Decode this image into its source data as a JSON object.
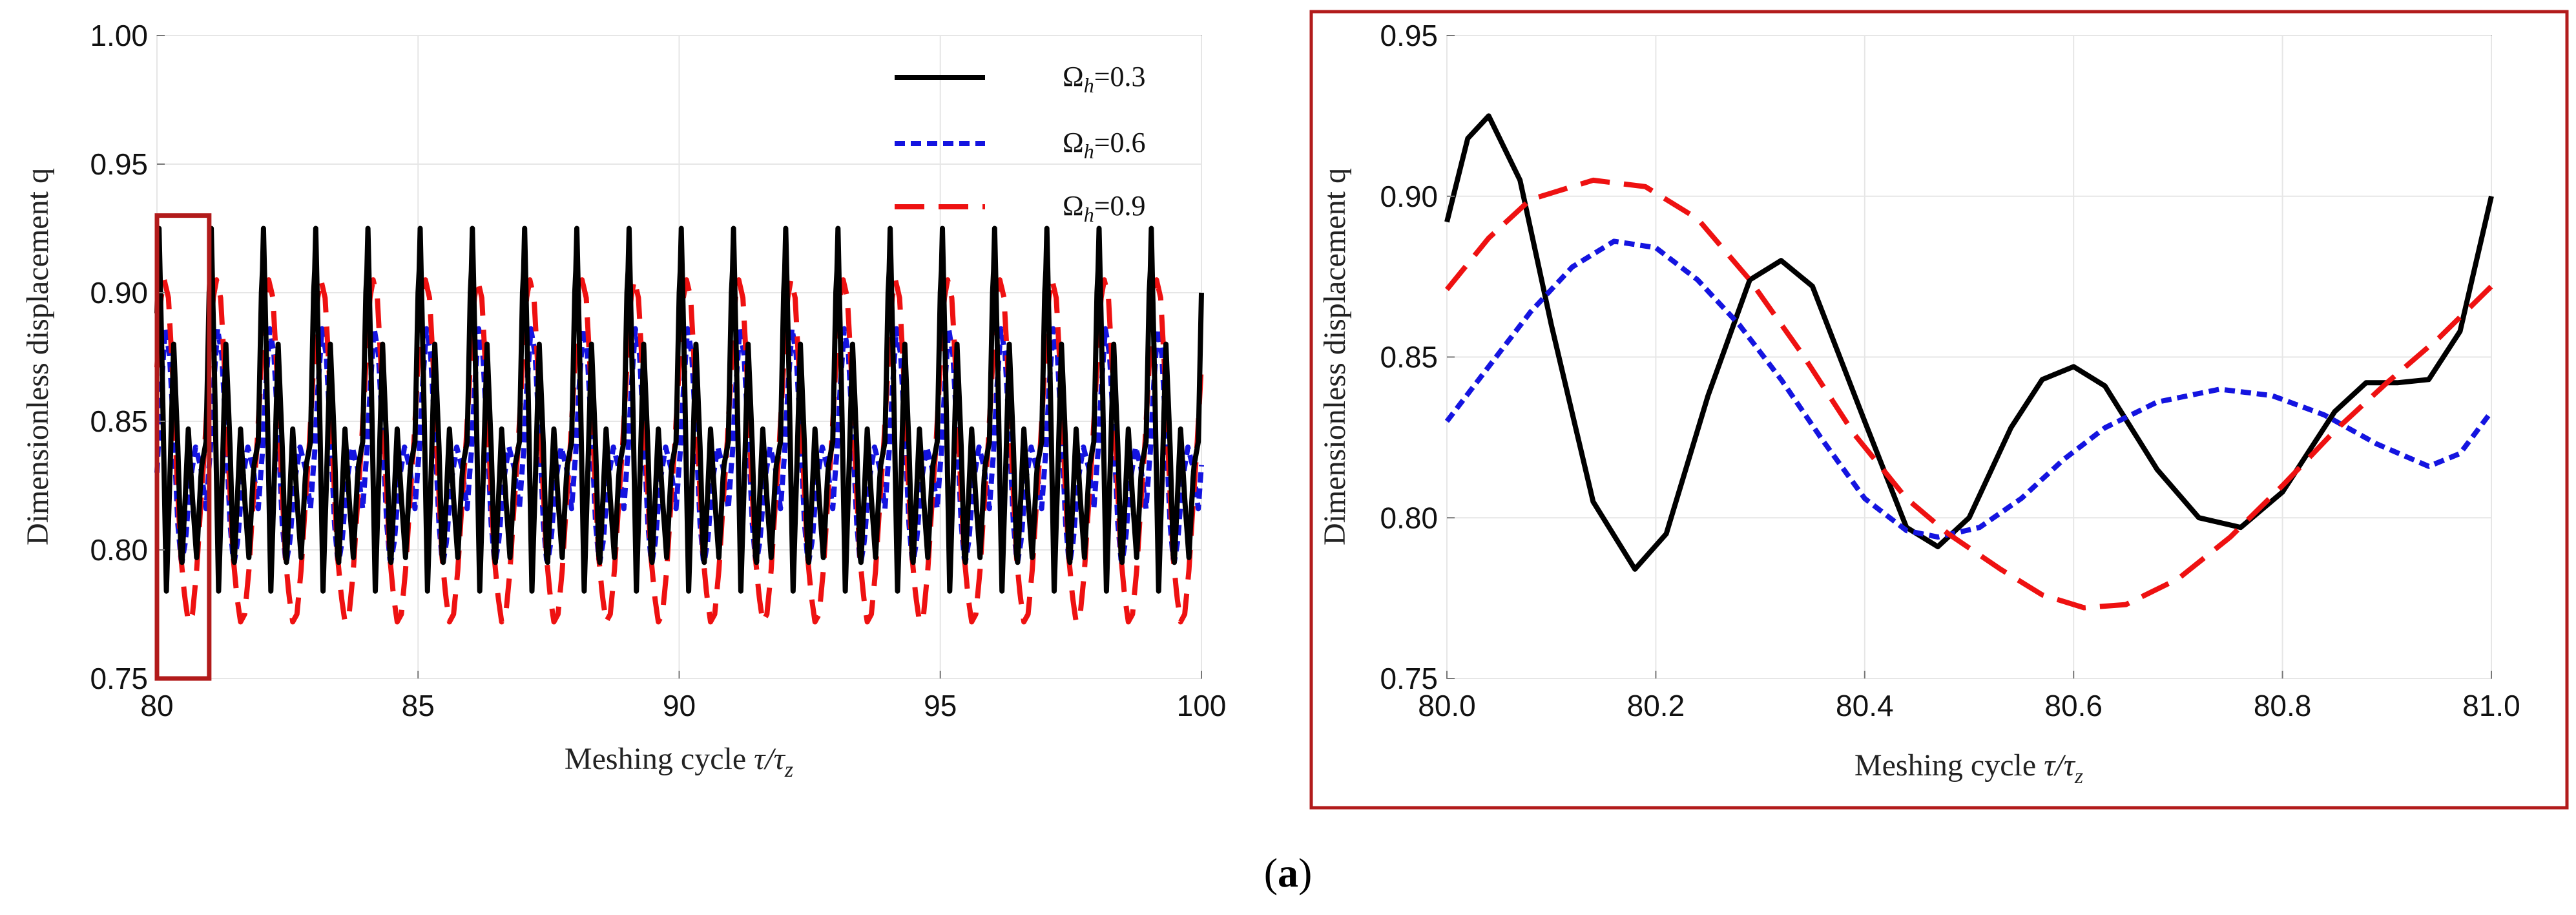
{
  "caption": {
    "open": "(",
    "letter": "a",
    "close": ")"
  },
  "chart_data": [
    {
      "type": "line",
      "title": "",
      "xlabel": "Meshing cycle τ/τz",
      "xlabel_main": "Meshing cycle ",
      "xlabel_tau": "τ/τ",
      "xlabel_sub": "z",
      "ylabel": "Dimensionless displacement q",
      "xlim": [
        80,
        100
      ],
      "ylim": [
        0.75,
        1.0
      ],
      "x_ticks": [
        80,
        85,
        90,
        95,
        100
      ],
      "y_ticks": [
        0.75,
        0.8,
        0.85,
        0.9,
        0.95,
        1.0
      ],
      "x_tick_labels": [
        "80",
        "85",
        "90",
        "95",
        "100"
      ],
      "y_tick_labels": [
        "0.75",
        "0.80",
        "0.85",
        "0.90",
        "0.95",
        "1.00"
      ],
      "legend_position": "top-right",
      "zoom_region": {
        "x": [
          80,
          81
        ],
        "y": [
          0.75,
          0.93
        ]
      },
      "series": [
        {
          "name": "Ωh=0.3",
          "omega": "Ω",
          "sub": "h",
          "value": "=0.3",
          "color": "#000000",
          "style": "solid",
          "x": [
            80.0,
            80.04,
            80.1,
            80.18,
            80.25,
            80.32,
            80.4,
            80.47,
            80.54,
            80.6,
            80.68,
            80.76,
            80.85,
            80.94,
            81.0
          ],
          "values": [
            0.892,
            0.925,
            0.87,
            0.784,
            0.83,
            0.88,
            0.84,
            0.791,
            0.82,
            0.847,
            0.82,
            0.797,
            0.832,
            0.842,
            0.9
          ]
        },
        {
          "name": "Ωh=0.6",
          "omega": "Ω",
          "sub": "h",
          "value": "=0.6",
          "color": "#1414e0",
          "style": "dotted",
          "x": [
            80.0,
            80.08,
            80.16,
            80.24,
            80.32,
            80.4,
            80.47,
            80.55,
            80.63,
            80.74,
            80.84,
            80.94,
            81.0
          ],
          "values": [
            0.83,
            0.862,
            0.886,
            0.876,
            0.846,
            0.81,
            0.794,
            0.804,
            0.826,
            0.84,
            0.832,
            0.816,
            0.833
          ]
        },
        {
          "name": "Ωh=0.9",
          "omega": "Ω",
          "sub": "h",
          "value": "=0.9",
          "color": "#ee1111",
          "style": "dashed",
          "x": [
            80.0,
            80.07,
            80.14,
            80.22,
            80.3,
            80.38,
            80.46,
            80.53,
            80.6,
            80.68,
            80.76,
            80.84,
            80.92,
            81.0
          ],
          "values": [
            0.871,
            0.897,
            0.905,
            0.898,
            0.868,
            0.83,
            0.797,
            0.782,
            0.772,
            0.775,
            0.792,
            0.818,
            0.842,
            0.872
          ]
        }
      ]
    },
    {
      "type": "line",
      "title": "",
      "xlabel": "Meshing cycle τ/τz",
      "xlabel_main": "Meshing cycle ",
      "xlabel_tau": "τ/τ",
      "xlabel_sub": "z",
      "ylabel": "Dimensionless displacement q",
      "xlim": [
        80.0,
        81.0
      ],
      "ylim": [
        0.75,
        0.95
      ],
      "x_ticks": [
        80.0,
        80.2,
        80.4,
        80.6,
        80.8,
        81.0
      ],
      "y_ticks": [
        0.75,
        0.8,
        0.85,
        0.9,
        0.95
      ],
      "x_tick_labels": [
        "80.0",
        "80.2",
        "80.4",
        "80.6",
        "80.8",
        "81.0"
      ],
      "y_tick_labels": [
        "0.75",
        "0.80",
        "0.85",
        "0.90",
        "0.95"
      ],
      "series": [
        {
          "name": "Ωh=0.3",
          "color": "#000000",
          "style": "solid",
          "x": [
            80.0,
            80.02,
            80.04,
            80.07,
            80.1,
            80.14,
            80.18,
            80.21,
            80.25,
            80.29,
            80.32,
            80.35,
            80.4,
            80.44,
            80.47,
            80.5,
            80.54,
            80.57,
            80.6,
            80.63,
            80.68,
            80.72,
            80.76,
            80.8,
            80.85,
            80.88,
            80.91,
            80.94,
            80.97,
            81.0
          ],
          "values": [
            0.892,
            0.918,
            0.925,
            0.905,
            0.86,
            0.805,
            0.784,
            0.795,
            0.838,
            0.874,
            0.88,
            0.872,
            0.83,
            0.797,
            0.791,
            0.8,
            0.828,
            0.843,
            0.847,
            0.841,
            0.815,
            0.8,
            0.797,
            0.808,
            0.833,
            0.842,
            0.842,
            0.843,
            0.858,
            0.9
          ]
        },
        {
          "name": "Ωh=0.6",
          "color": "#1414e0",
          "style": "dotted",
          "x": [
            80.0,
            80.04,
            80.08,
            80.12,
            80.16,
            80.2,
            80.24,
            80.28,
            80.32,
            80.36,
            80.4,
            80.44,
            80.47,
            80.51,
            80.55,
            80.59,
            80.63,
            80.68,
            80.74,
            80.79,
            80.84,
            80.89,
            80.94,
            80.97,
            81.0
          ],
          "values": [
            0.83,
            0.847,
            0.864,
            0.878,
            0.886,
            0.884,
            0.874,
            0.86,
            0.843,
            0.824,
            0.806,
            0.796,
            0.794,
            0.797,
            0.806,
            0.818,
            0.828,
            0.836,
            0.84,
            0.838,
            0.832,
            0.823,
            0.816,
            0.82,
            0.833
          ]
        },
        {
          "name": "Ωh=0.9",
          "color": "#ee1111",
          "style": "dashed",
          "x": [
            80.0,
            80.04,
            80.08,
            80.14,
            80.19,
            80.24,
            80.29,
            80.34,
            80.39,
            80.44,
            80.48,
            80.53,
            80.57,
            80.61,
            80.65,
            80.7,
            80.75,
            80.8,
            80.85,
            80.9,
            80.95,
            81.0
          ],
          "values": [
            0.871,
            0.887,
            0.899,
            0.905,
            0.903,
            0.893,
            0.874,
            0.851,
            0.826,
            0.806,
            0.795,
            0.784,
            0.776,
            0.772,
            0.773,
            0.781,
            0.794,
            0.81,
            0.827,
            0.842,
            0.856,
            0.872
          ]
        }
      ]
    }
  ]
}
